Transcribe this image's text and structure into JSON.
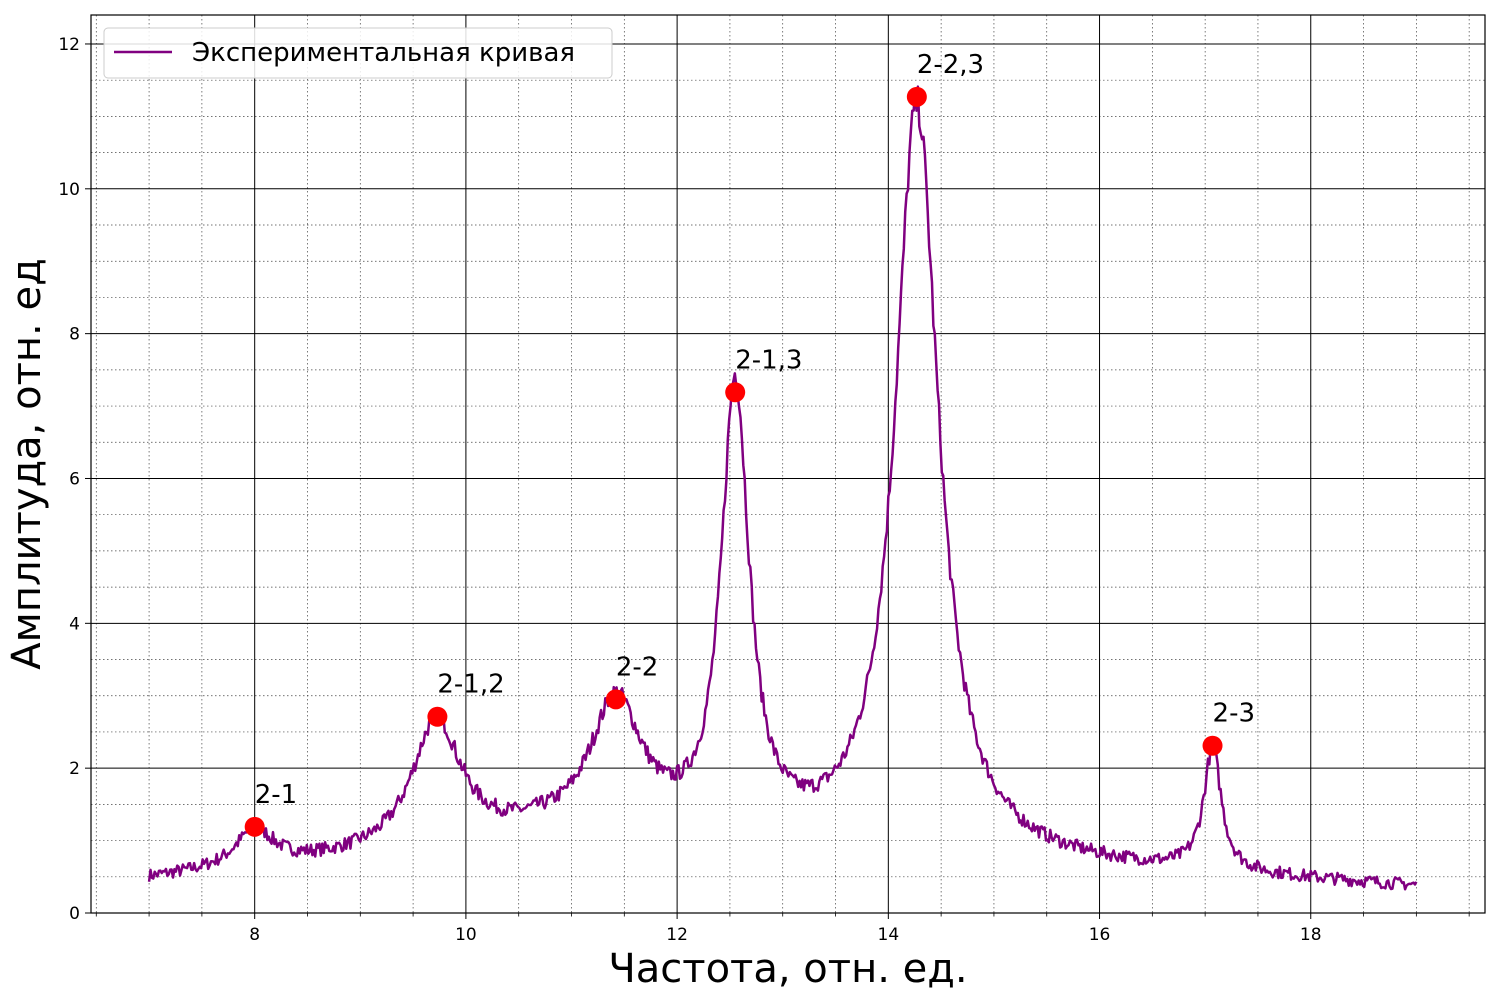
{
  "chart_data": {
    "type": "line",
    "xlabel": "Частота, отн. ед.",
    "ylabel": "Амплитуда, отн. ед",
    "xlim": [
      6.45,
      19.65
    ],
    "ylim": [
      0,
      12.4
    ],
    "xticks": [
      8,
      10,
      12,
      14,
      16,
      18
    ],
    "xtick_labels": [
      "8",
      "10",
      "12",
      "14",
      "16",
      "18"
    ],
    "yticks": [
      0,
      2,
      4,
      6,
      8,
      10,
      12
    ],
    "ytick_labels": [
      "0",
      "2",
      "4",
      "6",
      "8",
      "10",
      "12"
    ],
    "grid": "major solid black, minor dotted",
    "legend": {
      "placement": "top-left",
      "entries": [
        {
          "label": "Экспериментальная кривая",
          "color": "#800080"
        }
      ]
    },
    "series": [
      {
        "name": "Экспериментальная кривая",
        "color": "#800080",
        "x_range": [
          7.0,
          19.0
        ],
        "baseline": {
          "start": 0.45,
          "mid": [
            [
              9.3,
              0.75
            ],
            [
              10.7,
              1.0
            ],
            [
              16.5,
              0.55
            ]
          ],
          "end": 0.35
        },
        "peaks_shape": [
          {
            "x": 8.0,
            "height": 1.1,
            "width": 0.22
          },
          {
            "x": 9.72,
            "height": 2.6,
            "width": 0.28
          },
          {
            "x": 11.42,
            "height": 2.8,
            "width": 0.3
          },
          {
            "x": 12.55,
            "height": 7.1,
            "width": 0.16
          },
          {
            "x": 14.27,
            "height": 11.1,
            "width": 0.25
          },
          {
            "x": 17.07,
            "height": 2.2,
            "width": 0.1
          }
        ]
      }
    ],
    "markers": [
      {
        "x": 8.0,
        "y": 1.19,
        "label": "2-1",
        "color": "#ff0000"
      },
      {
        "x": 9.73,
        "y": 2.71,
        "label": "2-1,2",
        "color": "#ff0000"
      },
      {
        "x": 11.42,
        "y": 2.95,
        "label": "2-2",
        "color": "#ff0000"
      },
      {
        "x": 12.55,
        "y": 7.19,
        "label": "2-1,3",
        "color": "#ff0000"
      },
      {
        "x": 14.27,
        "y": 11.27,
        "label": "2-2,3",
        "color": "#ff0000"
      },
      {
        "x": 17.07,
        "y": 2.31,
        "label": "2-3",
        "color": "#ff0000"
      }
    ]
  }
}
